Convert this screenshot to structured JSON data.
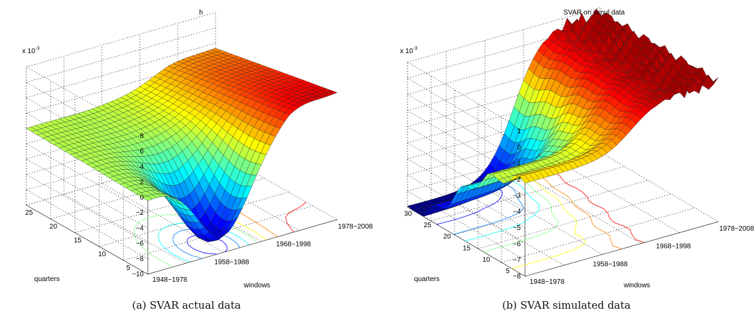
{
  "chart_data": [
    {
      "type": "surface",
      "title": "h",
      "caption": "(a) SVAR actual data",
      "z_scale_label": "x 10",
      "z_scale_exponent": "-3",
      "xlabel": "windows",
      "ylabel": "quarters",
      "x_ticks": [
        "1948−1978",
        "1958−1988",
        "1968−1998",
        "1978−2008"
      ],
      "y_ticks": [
        "5",
        "10",
        "15",
        "20",
        "25"
      ],
      "z_ticks": [
        "−10",
        "−8",
        "−6",
        "−4",
        "−2",
        "0",
        "2",
        "4",
        "6",
        "8"
      ],
      "zlim": [
        -10,
        8
      ],
      "ylim": [
        1,
        25
      ],
      "grid": true,
      "contour_projection": true,
      "colormap": "jet",
      "surface_description": "near 0 at short horizons across windows; deep trough (about −9e-3) around quarters 3–8 for the middle windows; rises to about 7e-3 for the most recent windows"
    },
    {
      "type": "surface",
      "title": "SVAR on simul data",
      "caption": "(b) SVAR simulated data",
      "z_scale_label": "x 10",
      "z_scale_exponent": "-3",
      "xlabel": "windows",
      "ylabel": "quarters",
      "x_ticks": [
        "1948−1978",
        "1958−1988",
        "1968−1998",
        "1978−2008"
      ],
      "y_ticks": [
        "5",
        "10",
        "15",
        "20",
        "25",
        "30"
      ],
      "z_ticks": [
        "−8",
        "−7",
        "−6",
        "−5",
        "−4",
        "−3",
        "−2",
        "−1",
        "0",
        "1"
      ],
      "zlim": [
        -8,
        1
      ],
      "ylim": [
        1,
        30
      ],
      "grid": true,
      "contour_projection": true,
      "colormap": "jet",
      "surface_description": "about −2e-3 at long horizons; trough near −8e-3 at short horizons for early windows; jagged plateau near 0.5e-3 for later windows"
    }
  ]
}
